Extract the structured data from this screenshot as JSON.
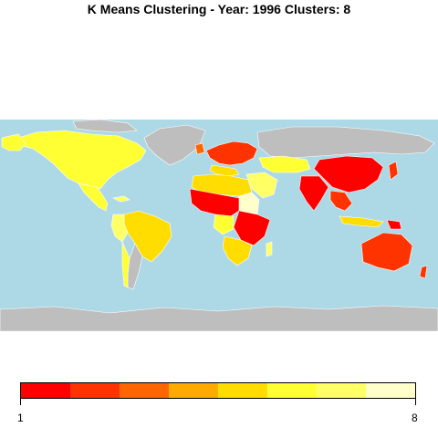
{
  "title": "K Means Clustering - Year: 1996 Clusters: 8",
  "map": {
    "ocean_color": "#ADD8E6",
    "no_data_color": "#BEBEBE"
  },
  "legend": {
    "colors": [
      "#FF0000",
      "#FF3300",
      "#FF6600",
      "#FFAA00",
      "#FFDD00",
      "#FFFF33",
      "#FFFF66",
      "#FFFFCC"
    ],
    "min_label": "1",
    "max_label": "8"
  },
  "chart_data": {
    "type": "choropleth",
    "title": "K Means Clustering - Year: 1996 Clusters: 8",
    "clusters": [
      1,
      2,
      3,
      4,
      5,
      6,
      7,
      8
    ],
    "color_scale": [
      "#FF0000",
      "#FF3300",
      "#FF6600",
      "#FFAA00",
      "#FFDD00",
      "#FFFF33",
      "#FFFF66",
      "#FFFFCC"
    ],
    "range": [
      1,
      8
    ]
  }
}
